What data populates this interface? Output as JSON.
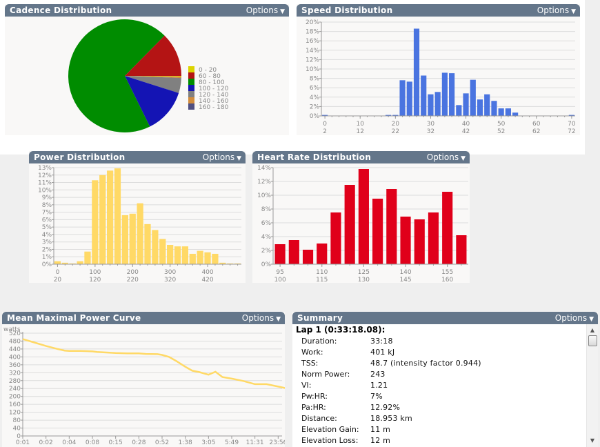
{
  "panels": {
    "cadence": {
      "title": "Cadence Distribution",
      "options_label": "Options"
    },
    "speed": {
      "title": "Speed Distribution",
      "options_label": "Options"
    },
    "power": {
      "title": "Power Distribution",
      "options_label": "Options"
    },
    "heart_rate": {
      "title": "Heart Rate Distribution",
      "options_label": "Options"
    },
    "mmp": {
      "title": "Mean Maximal Power Curve",
      "options_label": "Options"
    },
    "summary": {
      "title": "Summary",
      "options_label": "Options"
    }
  },
  "colors": {
    "header": "#64768a",
    "speed_bar": "#4a74e0",
    "power_bar": "#ffd966",
    "hr_bar": "#e0001a",
    "mmp_line": "#ffd966"
  },
  "summary": {
    "lap_title": "Lap 1 (0:33:18.08):",
    "rows": [
      {
        "label": "Duration:",
        "value": "33:18"
      },
      {
        "label": "Work:",
        "value": "401 kJ"
      },
      {
        "label": "TSS:",
        "value": "48.7 (intensity factor 0.944)"
      },
      {
        "label": "Norm Power:",
        "value": "243"
      },
      {
        "label": "VI:",
        "value": "1.21"
      },
      {
        "label": "Pw:HR:",
        "value": "7%"
      },
      {
        "label": "Pa:HR:",
        "value": "12.92%"
      },
      {
        "label": "Distance:",
        "value": "18.953 km"
      },
      {
        "label": "Elevation Gain:",
        "value": "11 m"
      },
      {
        "label": "Elevation Loss:",
        "value": "12 m"
      }
    ]
  },
  "chart_data": [
    {
      "id": "cadence",
      "type": "pie",
      "title": "Cadence Distribution",
      "legend_position": "right",
      "slices": [
        {
          "label": "0 - 20",
          "value": 0.2,
          "color": "#dcd400"
        },
        {
          "label": "60 - 80",
          "value": 12.6,
          "color": "#b41414"
        },
        {
          "label": "80 - 100",
          "value": 69.7,
          "color": "#008c00"
        },
        {
          "label": "100 - 120",
          "value": 12.8,
          "color": "#1414b4"
        },
        {
          "label": "120 - 140",
          "value": 4.3,
          "color": "#808080"
        },
        {
          "label": "140 - 160",
          "value": 0.4,
          "color": "#d28c3c"
        },
        {
          "label": "160 - 180",
          "value": 0.0,
          "color": "#505082"
        }
      ],
      "draw_order_clockwise_from_3oclock": [
        "0 - 20",
        "140 - 160",
        "120 - 140",
        "100 - 120",
        "80 - 100",
        "60 - 80"
      ]
    },
    {
      "id": "speed",
      "type": "bar",
      "title": "Speed Distribution",
      "bin_width": 2,
      "x": [
        0,
        2,
        4,
        6,
        8,
        10,
        12,
        14,
        16,
        18,
        20,
        22,
        24,
        26,
        28,
        30,
        32,
        34,
        36,
        38,
        40,
        42,
        44,
        46,
        48,
        50,
        52,
        54,
        56,
        58,
        60,
        62,
        64,
        66,
        68,
        70
      ],
      "values": [
        0.2,
        0,
        0,
        0,
        0,
        0,
        0,
        0,
        0,
        0.2,
        0.2,
        7.6,
        7.3,
        18.6,
        8.6,
        4.6,
        5.1,
        9.2,
        9.1,
        2.3,
        4.8,
        7.7,
        3.5,
        4.6,
        3.2,
        1.6,
        1.6,
        0.7,
        0,
        0,
        0,
        0,
        0,
        0,
        0,
        0.2
      ],
      "ylim": [
        0,
        20
      ],
      "yticks": [
        "0%",
        "2%",
        "4%",
        "6%",
        "8%",
        "10%",
        "12%",
        "14%",
        "16%",
        "18%",
        "20%"
      ],
      "xticks_row1": [
        "0",
        "10",
        "20",
        "30",
        "40",
        "50",
        "60",
        "70"
      ],
      "xticks_row2": [
        "2",
        "12",
        "22",
        "32",
        "42",
        "52",
        "62",
        "72"
      ],
      "grid": true
    },
    {
      "id": "power",
      "type": "bar",
      "title": "Power Distribution",
      "bin_width": 20,
      "x": [
        0,
        20,
        40,
        60,
        80,
        100,
        120,
        140,
        160,
        180,
        200,
        220,
        240,
        260,
        280,
        300,
        320,
        340,
        360,
        380,
        400,
        420,
        440,
        460,
        480
      ],
      "values": [
        0.4,
        0.2,
        0.1,
        0.4,
        1.7,
        11.3,
        12.0,
        12.6,
        12.9,
        6.6,
        6.8,
        8.2,
        5.4,
        4.6,
        3.4,
        2.6,
        2.4,
        2.4,
        1.4,
        1.8,
        1.6,
        1.4,
        0.2,
        0.1,
        0.1
      ],
      "ylim": [
        0,
        13
      ],
      "yticks": [
        "0%",
        "1%",
        "2%",
        "3%",
        "4%",
        "5%",
        "6%",
        "7%",
        "8%",
        "9%",
        "10%",
        "11%",
        "12%",
        "13%"
      ],
      "xticks_row1": [
        "0",
        "100",
        "200",
        "300",
        "400"
      ],
      "xticks_row2": [
        "20",
        "120",
        "220",
        "320",
        "420"
      ],
      "grid": true
    },
    {
      "id": "heart_rate",
      "type": "bar",
      "title": "Heart Rate Distribution",
      "bin_width": 5,
      "x": [
        95,
        100,
        105,
        110,
        115,
        120,
        125,
        130,
        135,
        140,
        145,
        150,
        155,
        160
      ],
      "values": [
        2.9,
        3.5,
        2.1,
        3.0,
        7.5,
        11.5,
        13.8,
        9.5,
        10.9,
        6.9,
        6.5,
        7.5,
        10.5,
        4.2
      ],
      "ylim": [
        0,
        14
      ],
      "yticks": [
        "0%",
        "2%",
        "4%",
        "6%",
        "8%",
        "10%",
        "12%",
        "14%"
      ],
      "xticks_row1": [
        "95",
        "110",
        "125",
        "140",
        "155"
      ],
      "xticks_row2": [
        "100",
        "115",
        "130",
        "145",
        "160"
      ],
      "grid": true
    },
    {
      "id": "mmp",
      "type": "line",
      "title": "Mean Maximal Power Curve",
      "ylabel": "watts",
      "ylim": [
        0,
        520
      ],
      "yticks": [
        "0",
        "40",
        "80",
        "120",
        "160",
        "200",
        "240",
        "280",
        "320",
        "360",
        "400",
        "440",
        "480",
        "520"
      ],
      "xticks": [
        "0:01",
        "0:02",
        "0:04",
        "0:08",
        "0:15",
        "0:28",
        "0:52",
        "1:38",
        "3:05",
        "5:49",
        "11:31",
        "23:56"
      ],
      "x_scale": "log (tick index)",
      "points": [
        [
          0,
          490
        ],
        [
          0.5,
          473
        ],
        [
          1,
          455
        ],
        [
          1.5,
          440
        ],
        [
          1.8,
          432
        ],
        [
          2,
          430
        ],
        [
          2.5,
          430
        ],
        [
          3,
          428
        ],
        [
          3.2,
          425
        ],
        [
          4,
          420
        ],
        [
          4.5,
          418
        ],
        [
          5,
          418
        ],
        [
          5.3,
          415
        ],
        [
          5.8,
          414
        ],
        [
          6,
          410
        ],
        [
          6.3,
          400
        ],
        [
          6.6,
          380
        ],
        [
          7,
          350
        ],
        [
          7.3,
          330
        ],
        [
          7.6,
          323
        ],
        [
          8,
          310
        ],
        [
          8.3,
          325
        ],
        [
          8.6,
          298
        ],
        [
          9,
          290
        ],
        [
          9.5,
          278
        ],
        [
          10,
          262
        ],
        [
          10.5,
          262
        ],
        [
          11,
          250
        ],
        [
          11.4,
          240
        ],
        [
          11.8,
          215
        ],
        [
          11.9,
          208
        ]
      ],
      "grid": true
    }
  ]
}
